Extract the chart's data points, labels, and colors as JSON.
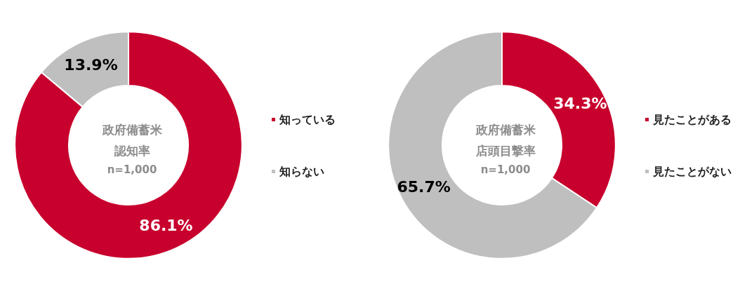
{
  "chart_data": [
    {
      "type": "donut",
      "title": "政府備蓄米認知率",
      "subtitle": "n=1,000",
      "categories": [
        "知っている",
        "知らない"
      ],
      "values": [
        86.1,
        13.9
      ],
      "value_labels": [
        "86.1%",
        "13.9%"
      ],
      "colors": [
        "#c8002d",
        "#bfbfbf"
      ],
      "legend": "right"
    },
    {
      "type": "donut",
      "title": "政府備蓄米店頭目撃率",
      "subtitle": "n=1,000",
      "categories": [
        "見たことがある",
        "見たことがない"
      ],
      "values": [
        34.3,
        65.7
      ],
      "value_labels": [
        "34.3%",
        "65.7%"
      ],
      "colors": [
        "#c8002d",
        "#bfbfbf"
      ],
      "legend": "right"
    }
  ]
}
